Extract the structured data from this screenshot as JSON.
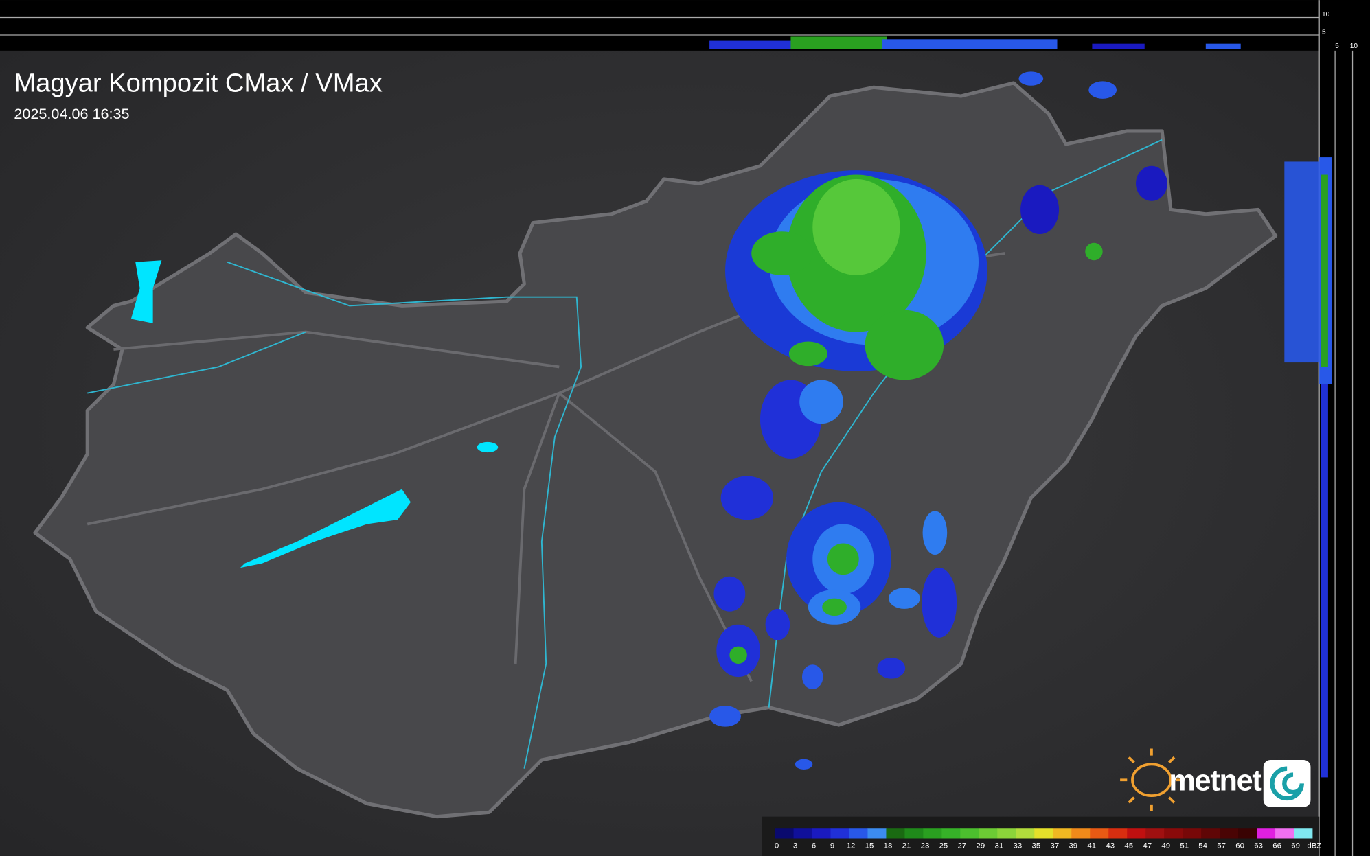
{
  "header": {
    "title": "Magyar Kompozit CMax / VMax",
    "timestamp": "2025.04.06 16:35"
  },
  "side_axis": {
    "top_labels": [
      "10",
      "5"
    ],
    "right_labels": [
      "5",
      "10"
    ]
  },
  "logo": {
    "text": "metnet"
  },
  "legend": {
    "unit": "dBZ",
    "values": [
      0,
      3,
      6,
      9,
      12,
      15,
      18,
      21,
      23,
      25,
      27,
      29,
      31,
      33,
      35,
      37,
      39,
      41,
      43,
      45,
      47,
      49,
      51,
      54,
      57,
      60,
      63,
      66,
      69
    ],
    "colors": [
      "#0a0a6e",
      "#10109a",
      "#1a1ac0",
      "#2030d8",
      "#2858e8",
      "#3c8cf0",
      "#1a6a12",
      "#1f8a1a",
      "#2aa020",
      "#36b228",
      "#4cbf2e",
      "#6ccb34",
      "#8cd43a",
      "#b2dc3c",
      "#e4e02a",
      "#f0b822",
      "#f08a1a",
      "#e85a14",
      "#d82e10",
      "#c01010",
      "#a01010",
      "#8a0a0a",
      "#780808",
      "#600606",
      "#4a0404",
      "#3a0303",
      "#e020e0",
      "#f070f0",
      "#80e8f0"
    ]
  }
}
